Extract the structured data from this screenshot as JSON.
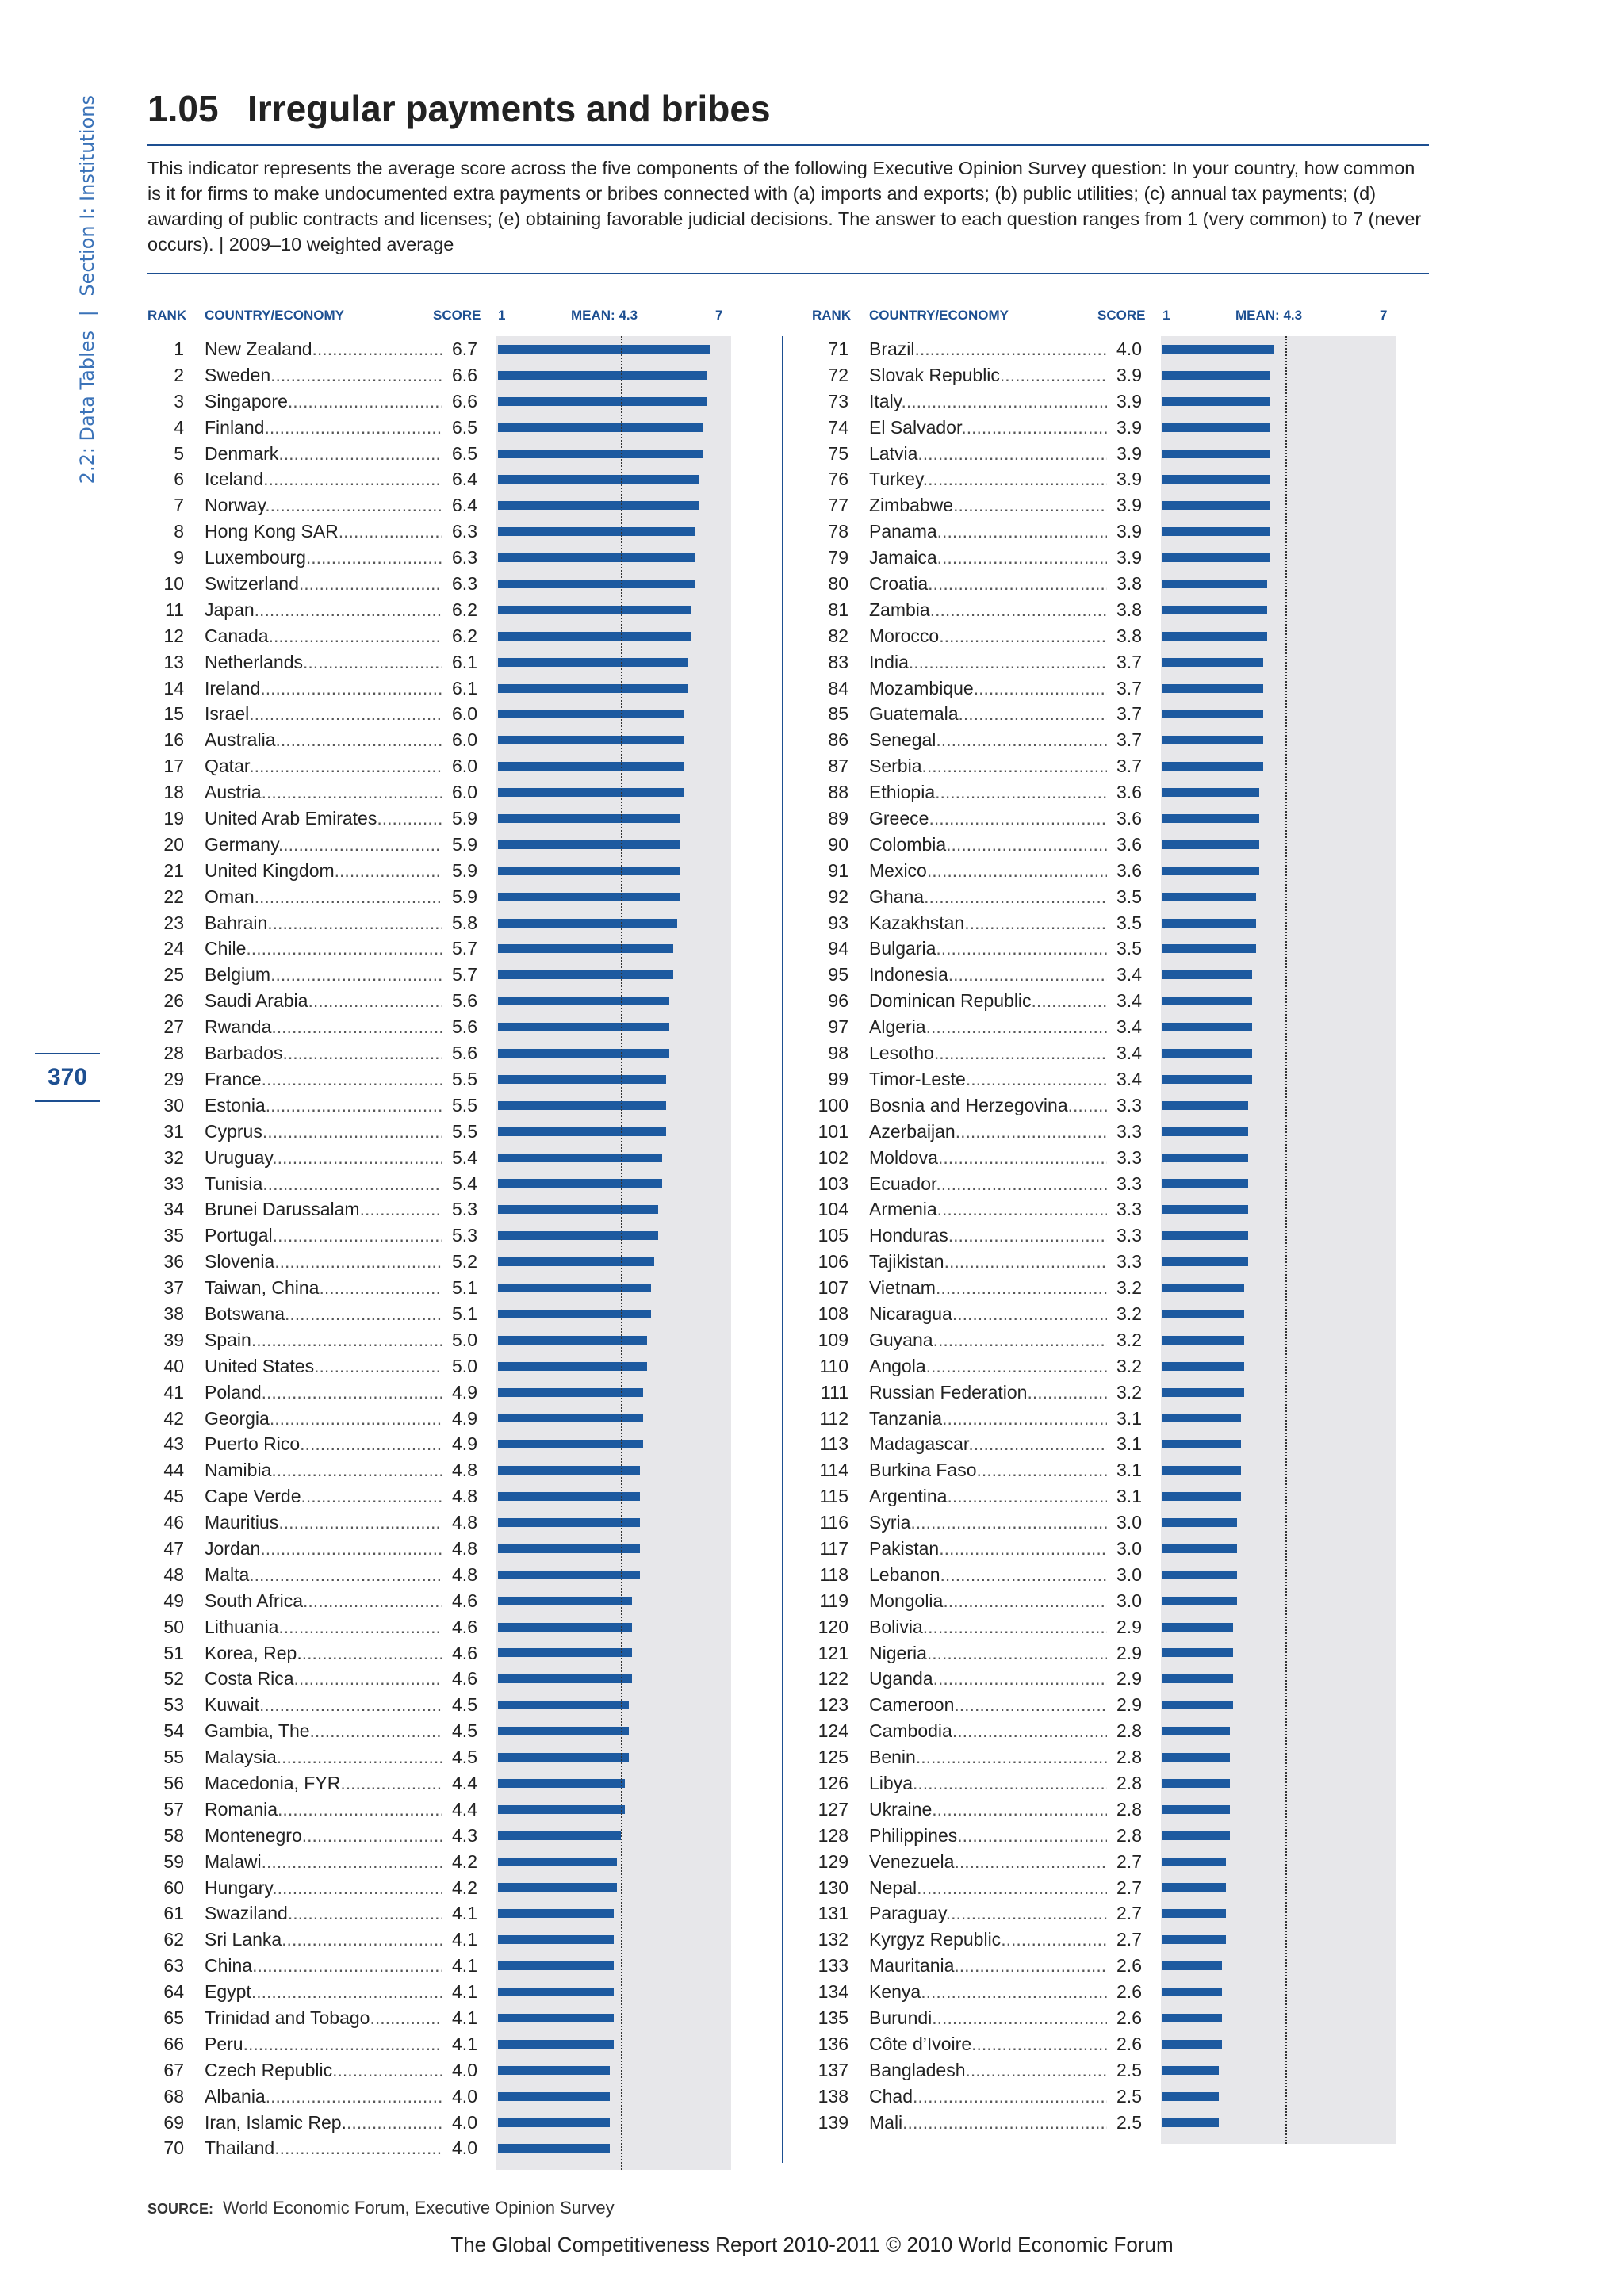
{
  "side_nav": {
    "part1": "2.2: Data Tables",
    "separator": "|",
    "part2": "Section I: Institutions"
  },
  "page_number": "370",
  "title": {
    "number": "1.05",
    "text": "Irregular payments and bribes"
  },
  "description": "This indicator represents the average score across the five components of the following Executive Opinion Survey question: In your country, how common is it for firms to make undocumented extra payments or bribes connected with (a) imports and exports; (b) public utilities; (c) annual tax payments; (d) awarding of public contracts and licenses; (e) obtaining favorable judicial decisions. The answer to each question ranges from 1 (very common) to 7 (never occurs).  |  2009–10 weighted average",
  "headers": {
    "rank": "RANK",
    "country": "COUNTRY/ECONOMY",
    "score": "SCORE",
    "scale_min": "1",
    "mean": "MEAN: 4.3",
    "scale_max": "7"
  },
  "source": {
    "label": "SOURCE:",
    "text": "World Economic Forum, Executive Opinion Survey"
  },
  "footer": "The Global Competitiveness Report 2010-2011 © 2010 World Economic Forum",
  "colors": {
    "bar": "#1d5aa0",
    "panel": "#e7e7ea",
    "accent": "#1d4f91"
  },
  "chart_data": {
    "type": "bar",
    "orientation": "horizontal",
    "xlim": [
      1,
      7
    ],
    "mean": 4.3,
    "rows": [
      {
        "rank": "1",
        "country": "New Zealand",
        "score": "6.7"
      },
      {
        "rank": "2",
        "country": "Sweden",
        "score": "6.6"
      },
      {
        "rank": "3",
        "country": "Singapore",
        "score": "6.6"
      },
      {
        "rank": "4",
        "country": "Finland",
        "score": "6.5"
      },
      {
        "rank": "5",
        "country": "Denmark",
        "score": "6.5"
      },
      {
        "rank": "6",
        "country": "Iceland",
        "score": "6.4"
      },
      {
        "rank": "7",
        "country": "Norway",
        "score": "6.4"
      },
      {
        "rank": "8",
        "country": "Hong Kong SAR",
        "score": "6.3"
      },
      {
        "rank": "9",
        "country": "Luxembourg",
        "score": "6.3"
      },
      {
        "rank": "10",
        "country": "Switzerland",
        "score": "6.3"
      },
      {
        "rank": "11",
        "country": "Japan",
        "score": "6.2"
      },
      {
        "rank": "12",
        "country": "Canada",
        "score": "6.2"
      },
      {
        "rank": "13",
        "country": "Netherlands",
        "score": "6.1"
      },
      {
        "rank": "14",
        "country": "Ireland",
        "score": "6.1"
      },
      {
        "rank": "15",
        "country": "Israel",
        "score": "6.0"
      },
      {
        "rank": "16",
        "country": "Australia",
        "score": "6.0"
      },
      {
        "rank": "17",
        "country": "Qatar",
        "score": "6.0"
      },
      {
        "rank": "18",
        "country": "Austria",
        "score": "6.0"
      },
      {
        "rank": "19",
        "country": "United Arab Emirates",
        "score": "5.9"
      },
      {
        "rank": "20",
        "country": "Germany",
        "score": "5.9"
      },
      {
        "rank": "21",
        "country": "United Kingdom",
        "score": "5.9"
      },
      {
        "rank": "22",
        "country": "Oman",
        "score": "5.9"
      },
      {
        "rank": "23",
        "country": "Bahrain",
        "score": "5.8"
      },
      {
        "rank": "24",
        "country": "Chile",
        "score": "5.7"
      },
      {
        "rank": "25",
        "country": "Belgium",
        "score": "5.7"
      },
      {
        "rank": "26",
        "country": "Saudi Arabia",
        "score": "5.6"
      },
      {
        "rank": "27",
        "country": "Rwanda",
        "score": "5.6"
      },
      {
        "rank": "28",
        "country": "Barbados",
        "score": "5.6"
      },
      {
        "rank": "29",
        "country": "France",
        "score": "5.5"
      },
      {
        "rank": "30",
        "country": "Estonia",
        "score": "5.5"
      },
      {
        "rank": "31",
        "country": "Cyprus",
        "score": "5.5"
      },
      {
        "rank": "32",
        "country": "Uruguay",
        "score": "5.4"
      },
      {
        "rank": "33",
        "country": "Tunisia",
        "score": "5.4"
      },
      {
        "rank": "34",
        "country": "Brunei Darussalam",
        "score": "5.3"
      },
      {
        "rank": "35",
        "country": "Portugal",
        "score": "5.3"
      },
      {
        "rank": "36",
        "country": "Slovenia",
        "score": "5.2"
      },
      {
        "rank": "37",
        "country": "Taiwan, China",
        "score": "5.1"
      },
      {
        "rank": "38",
        "country": "Botswana",
        "score": "5.1"
      },
      {
        "rank": "39",
        "country": "Spain",
        "score": "5.0"
      },
      {
        "rank": "40",
        "country": "United States",
        "score": "5.0"
      },
      {
        "rank": "41",
        "country": "Poland",
        "score": "4.9"
      },
      {
        "rank": "42",
        "country": "Georgia",
        "score": "4.9"
      },
      {
        "rank": "43",
        "country": "Puerto Rico",
        "score": "4.9"
      },
      {
        "rank": "44",
        "country": "Namibia",
        "score": "4.8"
      },
      {
        "rank": "45",
        "country": "Cape Verde",
        "score": "4.8"
      },
      {
        "rank": "46",
        "country": "Mauritius",
        "score": "4.8"
      },
      {
        "rank": "47",
        "country": "Jordan",
        "score": "4.8"
      },
      {
        "rank": "48",
        "country": "Malta",
        "score": "4.8"
      },
      {
        "rank": "49",
        "country": "South Africa",
        "score": "4.6"
      },
      {
        "rank": "50",
        "country": "Lithuania",
        "score": "4.6"
      },
      {
        "rank": "51",
        "country": "Korea, Rep.",
        "score": "4.6"
      },
      {
        "rank": "52",
        "country": "Costa Rica",
        "score": "4.6"
      },
      {
        "rank": "53",
        "country": "Kuwait",
        "score": "4.5"
      },
      {
        "rank": "54",
        "country": "Gambia, The",
        "score": "4.5"
      },
      {
        "rank": "55",
        "country": "Malaysia",
        "score": "4.5"
      },
      {
        "rank": "56",
        "country": "Macedonia, FYR",
        "score": "4.4"
      },
      {
        "rank": "57",
        "country": "Romania",
        "score": "4.4"
      },
      {
        "rank": "58",
        "country": "Montenegro",
        "score": "4.3"
      },
      {
        "rank": "59",
        "country": "Malawi",
        "score": "4.2"
      },
      {
        "rank": "60",
        "country": "Hungary",
        "score": "4.2"
      },
      {
        "rank": "61",
        "country": "Swaziland",
        "score": "4.1"
      },
      {
        "rank": "62",
        "country": "Sri Lanka",
        "score": "4.1"
      },
      {
        "rank": "63",
        "country": "China",
        "score": "4.1"
      },
      {
        "rank": "64",
        "country": "Egypt",
        "score": "4.1"
      },
      {
        "rank": "65",
        "country": "Trinidad and Tobago",
        "score": "4.1"
      },
      {
        "rank": "66",
        "country": "Peru",
        "score": "4.1"
      },
      {
        "rank": "67",
        "country": "Czech Republic",
        "score": "4.0"
      },
      {
        "rank": "68",
        "country": "Albania",
        "score": "4.0"
      },
      {
        "rank": "69",
        "country": "Iran, Islamic Rep.",
        "score": "4.0"
      },
      {
        "rank": "70",
        "country": "Thailand",
        "score": "4.0"
      },
      {
        "rank": "71",
        "country": "Brazil",
        "score": "4.0"
      },
      {
        "rank": "72",
        "country": "Slovak Republic",
        "score": "3.9"
      },
      {
        "rank": "73",
        "country": "Italy",
        "score": "3.9"
      },
      {
        "rank": "74",
        "country": "El Salvador",
        "score": "3.9"
      },
      {
        "rank": "75",
        "country": "Latvia",
        "score": "3.9"
      },
      {
        "rank": "76",
        "country": "Turkey",
        "score": "3.9"
      },
      {
        "rank": "77",
        "country": "Zimbabwe",
        "score": "3.9"
      },
      {
        "rank": "78",
        "country": "Panama",
        "score": "3.9"
      },
      {
        "rank": "79",
        "country": "Jamaica",
        "score": "3.9"
      },
      {
        "rank": "80",
        "country": "Croatia",
        "score": "3.8"
      },
      {
        "rank": "81",
        "country": "Zambia",
        "score": "3.8"
      },
      {
        "rank": "82",
        "country": "Morocco",
        "score": "3.8"
      },
      {
        "rank": "83",
        "country": "India",
        "score": "3.7"
      },
      {
        "rank": "84",
        "country": "Mozambique",
        "score": "3.7"
      },
      {
        "rank": "85",
        "country": "Guatemala",
        "score": "3.7"
      },
      {
        "rank": "86",
        "country": "Senegal",
        "score": "3.7"
      },
      {
        "rank": "87",
        "country": "Serbia",
        "score": "3.7"
      },
      {
        "rank": "88",
        "country": "Ethiopia",
        "score": "3.6"
      },
      {
        "rank": "89",
        "country": "Greece",
        "score": "3.6"
      },
      {
        "rank": "90",
        "country": "Colombia",
        "score": "3.6"
      },
      {
        "rank": "91",
        "country": "Mexico",
        "score": "3.6"
      },
      {
        "rank": "92",
        "country": "Ghana",
        "score": "3.5"
      },
      {
        "rank": "93",
        "country": "Kazakhstan",
        "score": "3.5"
      },
      {
        "rank": "94",
        "country": "Bulgaria",
        "score": "3.5"
      },
      {
        "rank": "95",
        "country": "Indonesia",
        "score": "3.4"
      },
      {
        "rank": "96",
        "country": "Dominican Republic",
        "score": "3.4"
      },
      {
        "rank": "97",
        "country": "Algeria",
        "score": "3.4"
      },
      {
        "rank": "98",
        "country": "Lesotho",
        "score": "3.4"
      },
      {
        "rank": "99",
        "country": "Timor-Leste",
        "score": "3.4"
      },
      {
        "rank": "100",
        "country": "Bosnia and Herzegovina",
        "score": "3.3"
      },
      {
        "rank": "101",
        "country": "Azerbaijan",
        "score": "3.3"
      },
      {
        "rank": "102",
        "country": "Moldova",
        "score": "3.3"
      },
      {
        "rank": "103",
        "country": "Ecuador",
        "score": "3.3"
      },
      {
        "rank": "104",
        "country": "Armenia",
        "score": "3.3"
      },
      {
        "rank": "105",
        "country": "Honduras",
        "score": "3.3"
      },
      {
        "rank": "106",
        "country": "Tajikistan",
        "score": "3.3"
      },
      {
        "rank": "107",
        "country": "Vietnam",
        "score": "3.2"
      },
      {
        "rank": "108",
        "country": "Nicaragua",
        "score": "3.2"
      },
      {
        "rank": "109",
        "country": "Guyana",
        "score": "3.2"
      },
      {
        "rank": "110",
        "country": "Angola",
        "score": "3.2"
      },
      {
        "rank": "111",
        "country": "Russian Federation",
        "score": "3.2"
      },
      {
        "rank": "112",
        "country": "Tanzania",
        "score": "3.1"
      },
      {
        "rank": "113",
        "country": "Madagascar",
        "score": "3.1"
      },
      {
        "rank": "114",
        "country": "Burkina Faso",
        "score": "3.1"
      },
      {
        "rank": "115",
        "country": "Argentina",
        "score": "3.1"
      },
      {
        "rank": "116",
        "country": "Syria",
        "score": "3.0"
      },
      {
        "rank": "117",
        "country": "Pakistan",
        "score": "3.0"
      },
      {
        "rank": "118",
        "country": "Lebanon",
        "score": "3.0"
      },
      {
        "rank": "119",
        "country": "Mongolia",
        "score": "3.0"
      },
      {
        "rank": "120",
        "country": "Bolivia",
        "score": "2.9"
      },
      {
        "rank": "121",
        "country": "Nigeria",
        "score": "2.9"
      },
      {
        "rank": "122",
        "country": "Uganda",
        "score": "2.9"
      },
      {
        "rank": "123",
        "country": "Cameroon",
        "score": "2.9"
      },
      {
        "rank": "124",
        "country": "Cambodia",
        "score": "2.8"
      },
      {
        "rank": "125",
        "country": "Benin",
        "score": "2.8"
      },
      {
        "rank": "126",
        "country": "Libya",
        "score": "2.8"
      },
      {
        "rank": "127",
        "country": "Ukraine",
        "score": "2.8"
      },
      {
        "rank": "128",
        "country": "Philippines",
        "score": "2.8"
      },
      {
        "rank": "129",
        "country": "Venezuela",
        "score": "2.7"
      },
      {
        "rank": "130",
        "country": "Nepal",
        "score": "2.7"
      },
      {
        "rank": "131",
        "country": "Paraguay",
        "score": "2.7"
      },
      {
        "rank": "132",
        "country": "Kyrgyz Republic",
        "score": "2.7"
      },
      {
        "rank": "133",
        "country": "Mauritania",
        "score": "2.6"
      },
      {
        "rank": "134",
        "country": "Kenya",
        "score": "2.6"
      },
      {
        "rank": "135",
        "country": "Burundi",
        "score": "2.6"
      },
      {
        "rank": "136",
        "country": "Côte d’Ivoire",
        "score": "2.6"
      },
      {
        "rank": "137",
        "country": "Bangladesh",
        "score": "2.5"
      },
      {
        "rank": "138",
        "country": "Chad",
        "score": "2.5"
      },
      {
        "rank": "139",
        "country": "Mali",
        "score": "2.5"
      }
    ]
  }
}
